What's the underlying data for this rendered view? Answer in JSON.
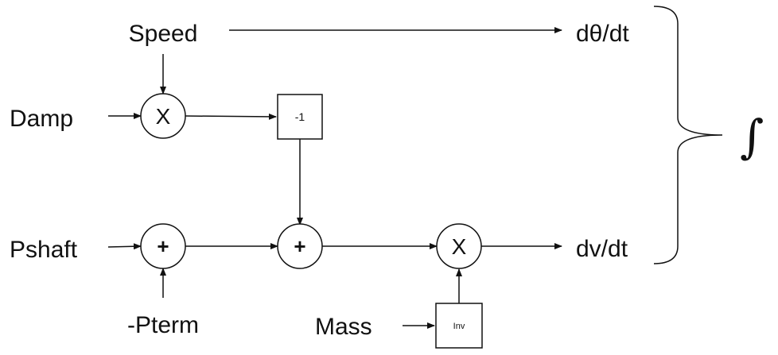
{
  "inputs": {
    "speed": "Speed",
    "damp": "Damp",
    "pshaft": "Pshaft",
    "pterm": "-Pterm",
    "mass": "Mass"
  },
  "operators": {
    "multiply_damp": "X",
    "sum_power": "+",
    "sum_total": "+",
    "multiply_mass": "X"
  },
  "blocks": {
    "negate": "-1",
    "inverse": "Inv"
  },
  "outputs": {
    "dtheta_dt": "dθ/dt",
    "dv_dt": "dv/dt"
  },
  "integral_symbol": "∫"
}
